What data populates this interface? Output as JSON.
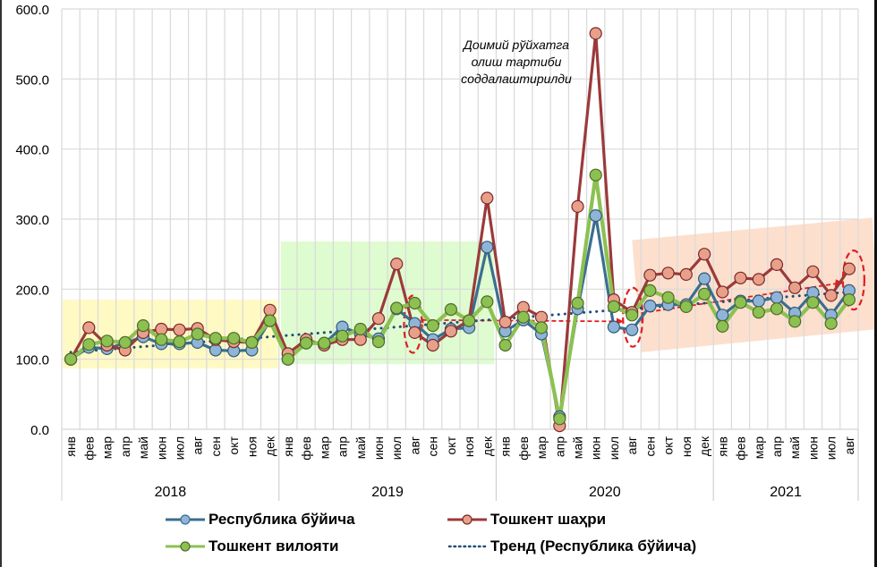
{
  "chart_data": {
    "type": "line",
    "title": "",
    "xlabel": "",
    "ylabel": "",
    "ylim": [
      0,
      600
    ],
    "yticks": [
      "0.0",
      "100.0",
      "200.0",
      "300.0",
      "400.0",
      "500.0",
      "600.0"
    ],
    "grid": true,
    "years": [
      {
        "label": "2018",
        "months": [
          "янв",
          "фев",
          "мар",
          "апр",
          "май",
          "июн",
          "июл",
          "авг",
          "сен",
          "окт",
          "ноя",
          "дек"
        ]
      },
      {
        "label": "2019",
        "months": [
          "янв",
          "фев",
          "мар",
          "апр",
          "май",
          "июн",
          "июл",
          "авг",
          "сен",
          "окт",
          "ноя",
          "дек"
        ]
      },
      {
        "label": "2020",
        "months": [
          "янв",
          "фев",
          "мар",
          "апр",
          "май",
          "июн",
          "июл",
          "авг",
          "сен",
          "окт",
          "ноя",
          "дек"
        ]
      },
      {
        "label": "2021",
        "months": [
          "янв",
          "фев",
          "мар",
          "апр",
          "май",
          "июн",
          "июл",
          "авг"
        ]
      }
    ],
    "series": [
      {
        "name": "Республика бўйича",
        "line_color": "#3a6f8f",
        "marker_color": "#8fb4d8",
        "values": [
          100,
          117,
          115,
          123,
          132,
          122,
          122,
          124,
          113,
          112,
          113,
          155,
          100,
          123,
          122,
          146,
          136,
          129,
          172,
          151,
          128,
          143,
          145,
          260,
          140,
          156,
          136,
          18,
          172,
          305,
          146,
          142,
          176,
          178,
          178,
          215,
          163,
          183,
          183,
          188,
          166,
          195,
          163,
          198
        ]
      },
      {
        "name": "Тошкент шаҳри",
        "line_color": "#9b3a3a",
        "marker_color": "#e8a08a",
        "values": [
          100,
          145,
          120,
          113,
          138,
          143,
          142,
          144,
          128,
          125,
          124,
          170,
          108,
          128,
          120,
          128,
          128,
          158,
          236,
          138,
          120,
          140,
          155,
          330,
          153,
          174,
          160,
          5,
          318,
          565,
          185,
          167,
          220,
          223,
          221,
          250,
          196,
          216,
          214,
          235,
          202,
          225,
          191,
          229
        ]
      },
      {
        "name": "Тошкент вилояти",
        "line_color": "#8cc152",
        "marker_color": "#8cc152",
        "values": [
          100,
          121,
          126,
          124,
          148,
          128,
          125,
          136,
          130,
          130,
          124,
          155,
          100,
          123,
          123,
          133,
          143,
          125,
          173,
          180,
          148,
          171,
          155,
          182,
          120,
          160,
          145,
          15,
          180,
          363,
          175,
          163,
          198,
          188,
          175,
          193,
          147,
          181,
          167,
          172,
          154,
          181,
          151,
          185
        ]
      },
      {
        "name": "Тренд (Республика бўйича)",
        "line_color": "#1f4e79",
        "style": "dotted",
        "trend": true,
        "values_start_end": [
          110,
          196
        ]
      }
    ],
    "annotation": [
      "Доимий рўйхатга",
      "олиш тартиби",
      "соддалаштирилди"
    ],
    "highlights": [
      {
        "color": "#fff9c4",
        "from_index": 0,
        "to_index": 11
      },
      {
        "color": "#dffbd0",
        "from_index": 12,
        "to_index": 23
      },
      {
        "color": "#fdd9c4",
        "from_index": 32,
        "to_index": 43
      }
    ],
    "legend": [
      "Республика бўйича",
      "Тошкент шаҳри",
      "Тошкент вилояти",
      "Тренд (Республика бўйича)"
    ],
    "legend_position": "bottom"
  }
}
